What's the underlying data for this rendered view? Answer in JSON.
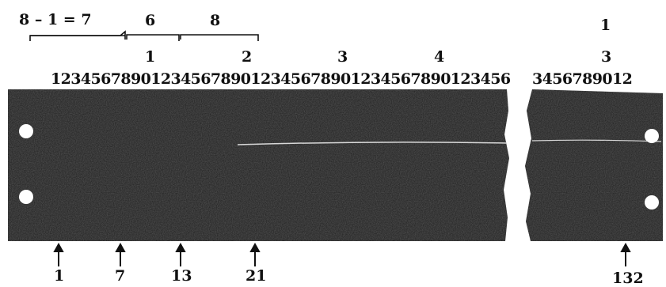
{
  "header": {
    "equation": "8 – 1 = 7",
    "bracket_values": [
      "6",
      "8"
    ],
    "right_top": "1"
  },
  "scale": {
    "main_tens": [
      "1",
      "2",
      "3",
      "4"
    ],
    "main_digits": "1234567890123456789012345678901234567890123456",
    "right_tens": "3",
    "right_digits": "3456789012"
  },
  "markers": [
    "1",
    "7",
    "13",
    "21",
    "132"
  ],
  "colors": {
    "strip": "#1b1b1b",
    "hole": "#ffffff",
    "ink": "#111111"
  }
}
